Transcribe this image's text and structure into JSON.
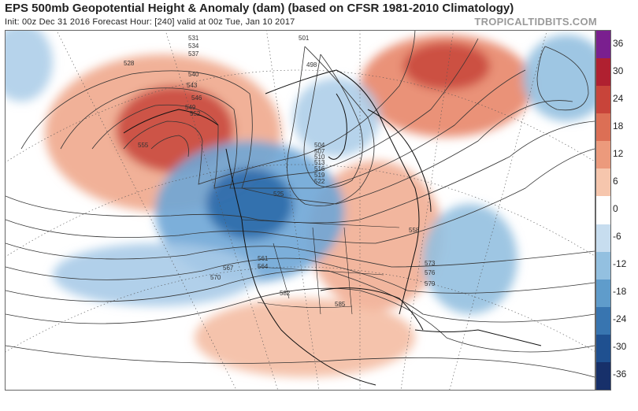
{
  "header": {
    "title": "EPS 500mb Geopotential Height & Anomaly (dam) (based on CFSR 1981-2010 Climatology)",
    "subtitle": "Init: 00z Dec 31 2016   Forecast Hour: [240]   valid at 00z Tue, Jan 10 2017",
    "brand": "TROPICALTIDBITS.COM"
  },
  "colorbar": {
    "labels": [
      "36",
      "30",
      "24",
      "18",
      "12",
      "6",
      "0",
      "-6",
      "-12",
      "-18",
      "-24",
      "-30",
      "-36"
    ],
    "colors": [
      "#7a1f8f",
      "#b02030",
      "#c8443a",
      "#dc6f55",
      "#ec9a7c",
      "#f6c6ad",
      "#ffffff",
      "#c7ddef",
      "#93c0e0",
      "#5f9ccb",
      "#3875b0",
      "#1f5090",
      "#17306a"
    ]
  },
  "map": {
    "contour_labels": [
      "501",
      "498",
      "504",
      "507",
      "510",
      "513",
      "516",
      "519",
      "522",
      "525",
      "528",
      "531",
      "534",
      "537",
      "540",
      "543",
      "546",
      "549",
      "552",
      "555",
      "558",
      "561",
      "564",
      "567",
      "570",
      "573",
      "576",
      "579",
      "582",
      "585"
    ],
    "anomaly_colors": {
      "positive": "#e8866a",
      "positive_strong": "#c8443a",
      "negative": "#6fa6d6",
      "negative_strong": "#2e6aaa"
    }
  }
}
